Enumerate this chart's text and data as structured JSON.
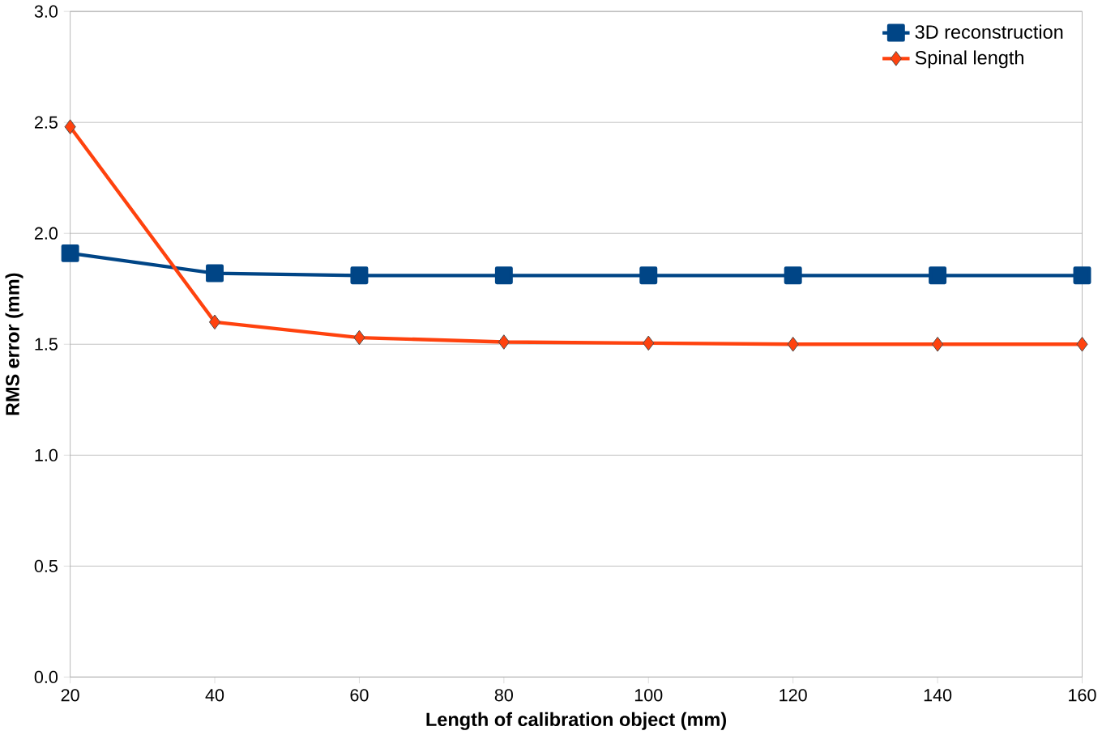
{
  "chart_data": {
    "type": "line",
    "xlabel": "Length of calibration object (mm)",
    "ylabel": "RMS error (mm)",
    "x": [
      20,
      40,
      60,
      80,
      100,
      120,
      140,
      160
    ],
    "series": [
      {
        "name": "3D reconstruction",
        "color": "#004586",
        "marker": "square",
        "values": [
          1.91,
          1.82,
          1.81,
          1.81,
          1.81,
          1.81,
          1.81,
          1.81
        ]
      },
      {
        "name": "Spinal length",
        "color": "#ff420e",
        "marker": "diamond",
        "values": [
          2.48,
          1.6,
          1.53,
          1.51,
          1.505,
          1.5,
          1.5,
          1.5
        ]
      }
    ],
    "xlim": [
      20,
      160
    ],
    "xticks": [
      20,
      40,
      60,
      80,
      100,
      120,
      140,
      160
    ],
    "ylim": [
      0,
      3
    ],
    "yticks": [
      {
        "value": 0,
        "label": "0.0"
      },
      0.5,
      {
        "value": 1,
        "label": "1.0"
      },
      1.5,
      {
        "value": 2,
        "label": "2.0"
      },
      2.5,
      {
        "value": 3,
        "label": "3.0"
      }
    ],
    "grid": "y",
    "legend": "top right",
    "line_style": "solid"
  }
}
